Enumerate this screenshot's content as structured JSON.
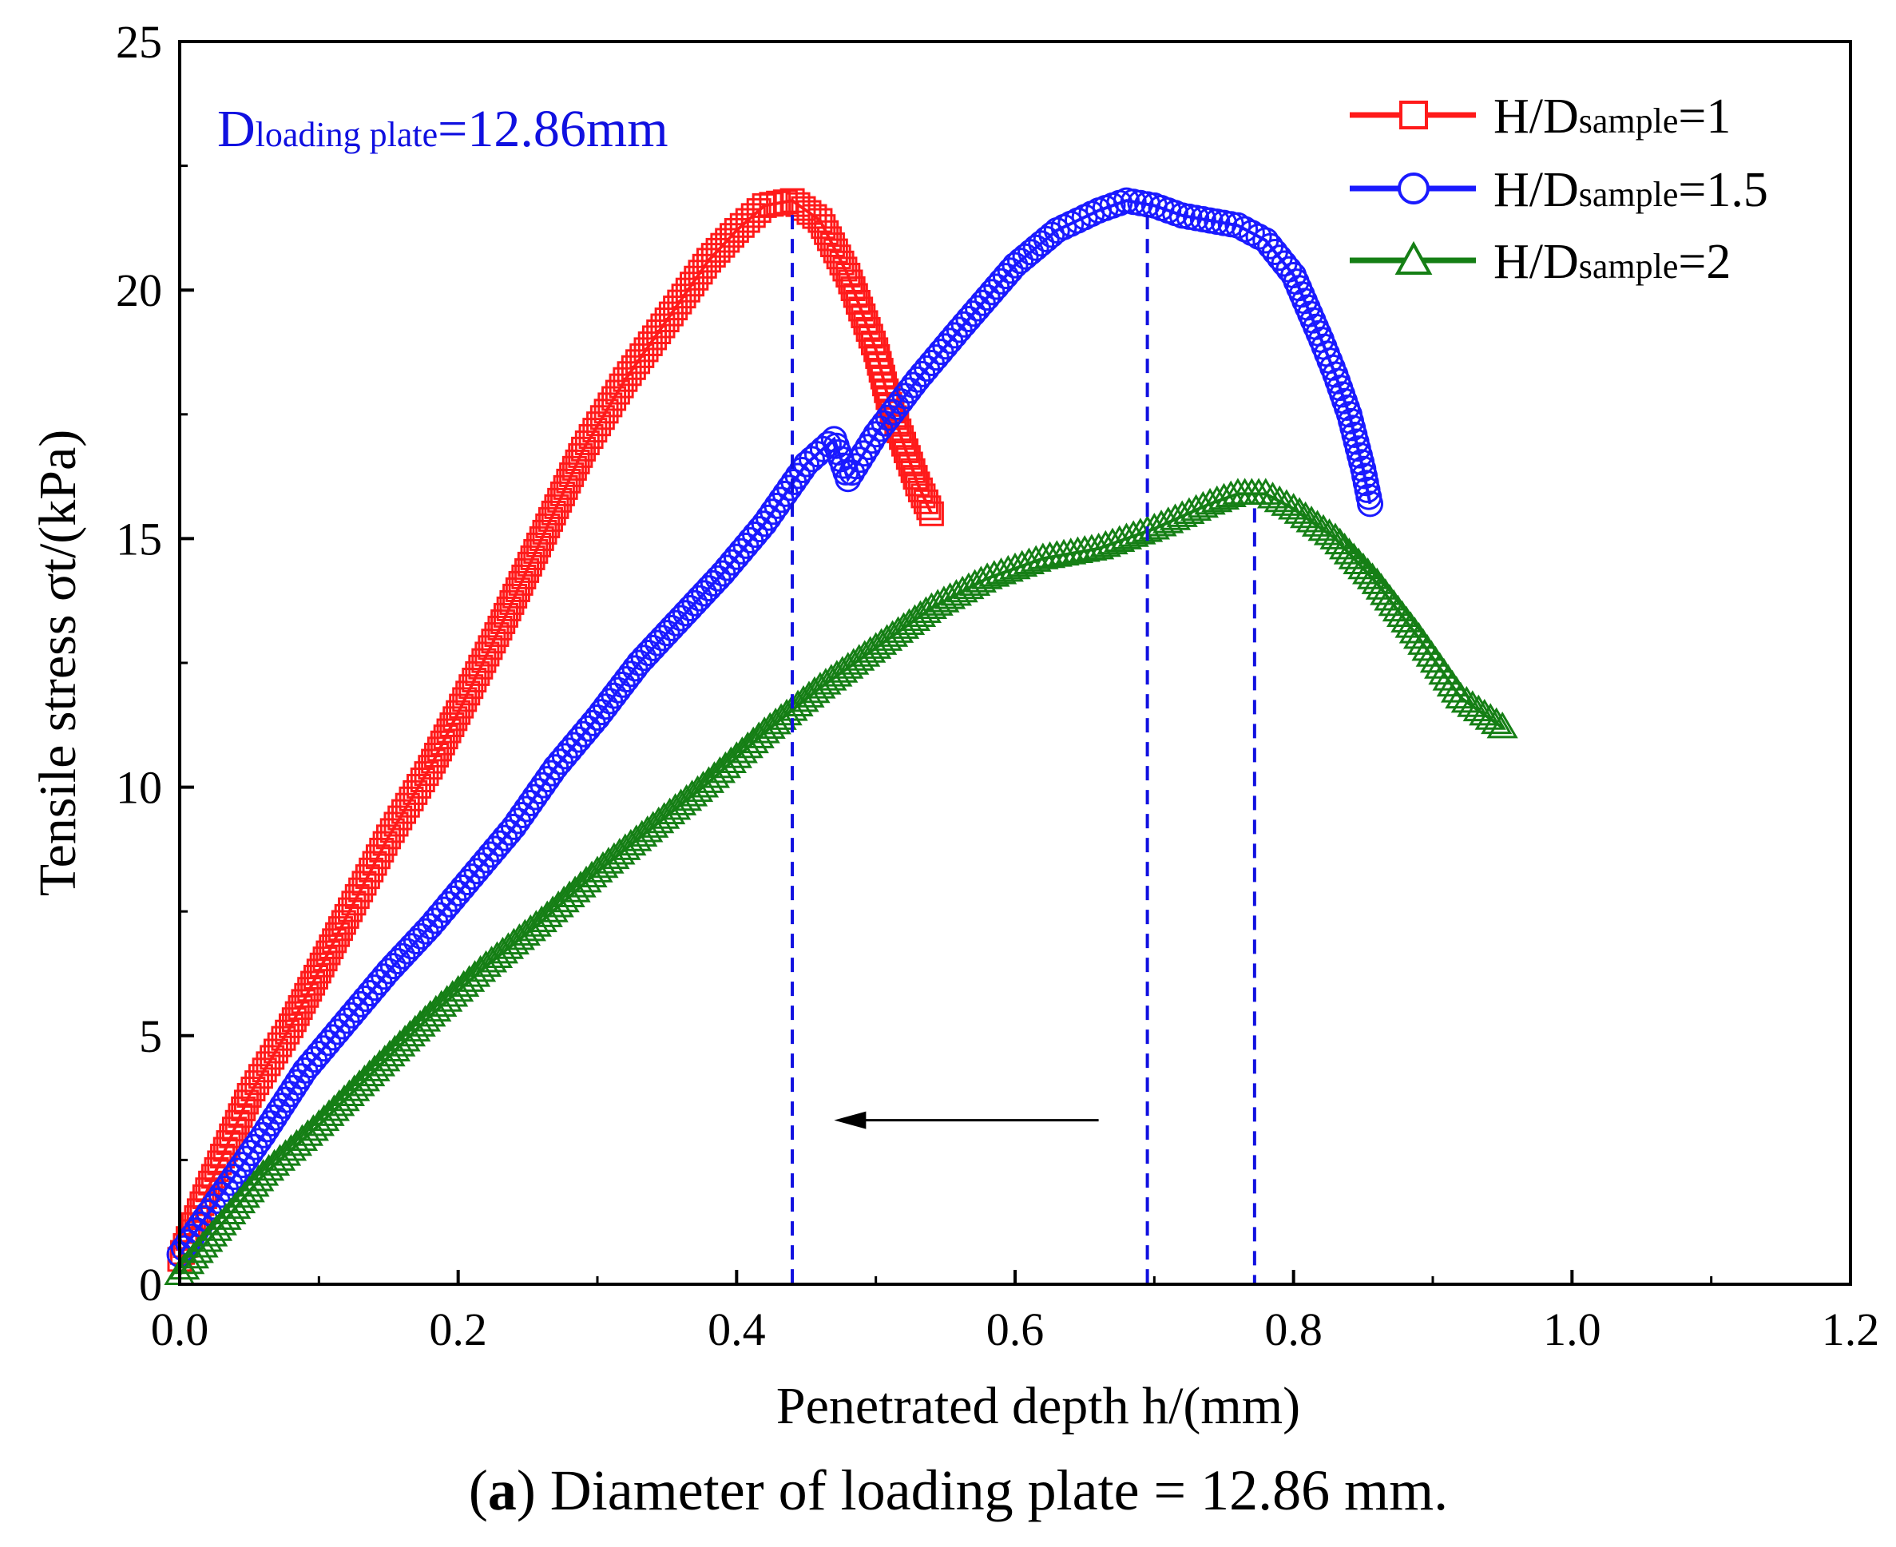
{
  "chart_data": {
    "type": "scatter",
    "title": "",
    "xlabel": "Penetrated depth h/(mm)",
    "ylabel": "Tensile stress σt/(kPa)",
    "xlim": [
      0.0,
      1.2
    ],
    "ylim": [
      0,
      25
    ],
    "xticks": [
      0.0,
      0.2,
      0.4,
      0.6,
      0.8,
      1.0,
      1.2
    ],
    "xtick_labels": [
      "0.0",
      "0.2",
      "0.4",
      "0.6",
      "0.8",
      "1.0",
      "1.2"
    ],
    "yticks": [
      0,
      5,
      10,
      15,
      20,
      25
    ],
    "ytick_labels": [
      "0",
      "5",
      "10",
      "15",
      "20",
      "25"
    ],
    "grid": false,
    "legend_position": "top-right",
    "annotation": {
      "main": "D",
      "sub": "loading plate",
      "value": "=12.86mm"
    },
    "caption": {
      "bold": "a",
      "open": "(",
      "rest": ") Diameter of loading plate = 12.86 mm."
    },
    "vertical_guides": [
      0.44,
      0.695,
      0.772
    ],
    "arrow": {
      "from": [
        0.66,
        3.3
      ],
      "to": [
        0.47,
        3.3
      ]
    },
    "series": [
      {
        "name_main": "H/D",
        "name_sub": "sample",
        "name_value": "=1",
        "color": "#ff1a1a",
        "marker": "square",
        "x": [
          0.0,
          0.02,
          0.05,
          0.08,
          0.1,
          0.12,
          0.15,
          0.18,
          0.2,
          0.23,
          0.26,
          0.29,
          0.32,
          0.35,
          0.38,
          0.4,
          0.42,
          0.44,
          0.46,
          0.48,
          0.5,
          0.51,
          0.52,
          0.53,
          0.54
        ],
        "y": [
          0.5,
          1.9,
          3.8,
          5.2,
          6.3,
          7.4,
          9.0,
          10.4,
          11.5,
          13.2,
          15.0,
          16.8,
          18.2,
          19.4,
          20.6,
          21.2,
          21.7,
          21.8,
          21.4,
          20.3,
          18.8,
          17.7,
          16.9,
          16.1,
          15.5
        ]
      },
      {
        "name_main": "H/D",
        "name_sub": "sample",
        "name_value": "=1.5",
        "color": "#1a1aff",
        "marker": "circle",
        "x": [
          0.0,
          0.03,
          0.06,
          0.09,
          0.12,
          0.15,
          0.18,
          0.21,
          0.24,
          0.27,
          0.3,
          0.33,
          0.36,
          0.39,
          0.42,
          0.45,
          0.47,
          0.48,
          0.5,
          0.53,
          0.56,
          0.6,
          0.63,
          0.66,
          0.68,
          0.7,
          0.72,
          0.74,
          0.76,
          0.78,
          0.8,
          0.82,
          0.83,
          0.84,
          0.85,
          0.855
        ],
        "y": [
          0.6,
          1.8,
          3.0,
          4.3,
          5.3,
          6.3,
          7.2,
          8.2,
          9.2,
          10.4,
          11.4,
          12.5,
          13.4,
          14.3,
          15.3,
          16.5,
          17.0,
          16.2,
          17.1,
          18.2,
          19.2,
          20.5,
          21.2,
          21.6,
          21.8,
          21.7,
          21.5,
          21.4,
          21.3,
          21.0,
          20.3,
          19.0,
          18.3,
          17.5,
          16.4,
          15.7
        ]
      },
      {
        "name_main": "H/D",
        "name_sub": "sample",
        "name_value": "=2",
        "color": "#157f15",
        "marker": "triangle",
        "x": [
          0.0,
          0.03,
          0.06,
          0.1,
          0.14,
          0.18,
          0.22,
          0.26,
          0.3,
          0.34,
          0.38,
          0.42,
          0.46,
          0.5,
          0.54,
          0.58,
          0.62,
          0.66,
          0.7,
          0.74,
          0.76,
          0.78,
          0.8,
          0.83,
          0.86,
          0.89,
          0.92,
          0.95
        ],
        "y": [
          0.2,
          1.2,
          2.2,
          3.2,
          4.3,
          5.4,
          6.4,
          7.3,
          8.3,
          9.2,
          10.1,
          11.1,
          12.0,
          12.8,
          13.6,
          14.2,
          14.6,
          14.8,
          15.2,
          15.7,
          15.9,
          15.9,
          15.6,
          15.0,
          14.1,
          13.0,
          11.8,
          11.2
        ]
      }
    ]
  }
}
